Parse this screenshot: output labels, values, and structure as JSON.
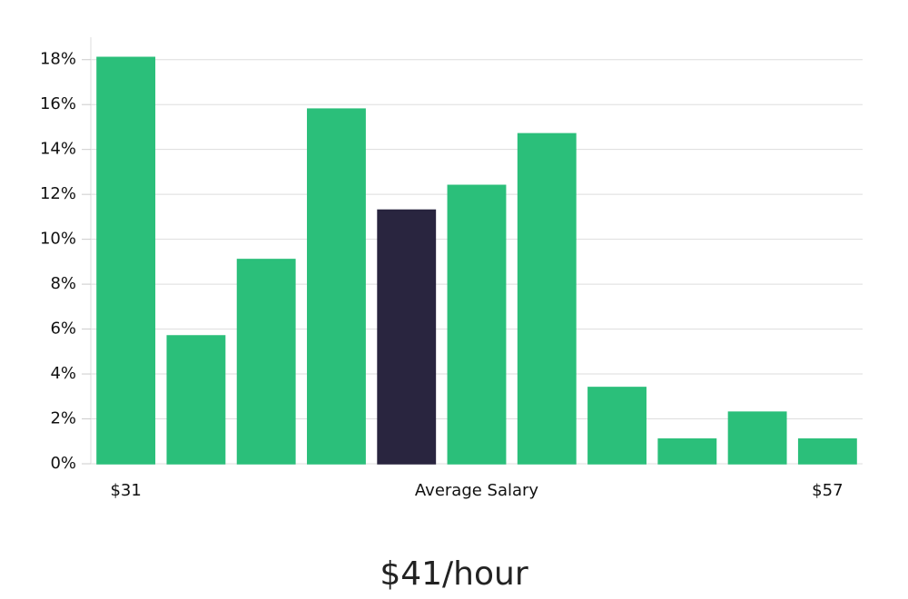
{
  "chart_data": {
    "type": "bar",
    "title": "$41/hour",
    "categories": [
      "$31",
      null,
      null,
      null,
      null,
      "Average Salary",
      null,
      null,
      null,
      null,
      "$57"
    ],
    "values": [
      18.1,
      5.7,
      9.1,
      15.8,
      11.3,
      12.4,
      14.7,
      3.4,
      1.1,
      2.3,
      1.1
    ],
    "colors": [
      "#2bbf7a",
      "#2bbf7a",
      "#2bbf7a",
      "#2bbf7a",
      "#29253f",
      "#2bbf7a",
      "#2bbf7a",
      "#2bbf7a",
      "#2bbf7a",
      "#2bbf7a",
      "#2bbf7a"
    ],
    "ylim": [
      0,
      19
    ],
    "yticks": [
      {
        "value": 0,
        "label": "0%"
      },
      {
        "value": 2,
        "label": "2%"
      },
      {
        "value": 4,
        "label": "4%"
      },
      {
        "value": 6,
        "label": "6%"
      },
      {
        "value": 8,
        "label": "8%"
      },
      {
        "value": 10,
        "label": "10%"
      },
      {
        "value": 12,
        "label": "12%"
      },
      {
        "value": 14,
        "label": "14%"
      },
      {
        "value": 16,
        "label": "16%"
      },
      {
        "value": 18,
        "label": "18%"
      }
    ],
    "grid": true
  }
}
